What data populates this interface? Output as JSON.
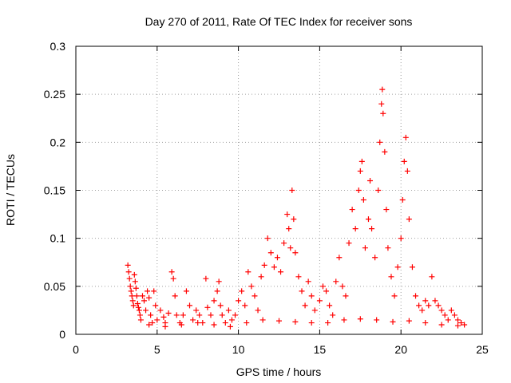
{
  "chart_data": {
    "type": "scatter",
    "title": "Day 270 of 2011, Rate Of TEC Index for receiver sons",
    "xlabel": "GPS time / hours",
    "ylabel": "ROTI / TECUs",
    "xlim": [
      0,
      25
    ],
    "ylim": [
      0,
      0.3
    ],
    "xticks": [
      0,
      5,
      10,
      15,
      20,
      25
    ],
    "xtick_labels": [
      "0",
      "5",
      "10",
      "15",
      "20",
      "25"
    ],
    "yticks": [
      0,
      0.05,
      0.1,
      0.15,
      0.2,
      0.25,
      0.3
    ],
    "ytick_labels": [
      "0",
      "0.05",
      "0.1",
      "0.15",
      "0.2",
      "0.25",
      "0.3"
    ],
    "grid": true,
    "marker": "+",
    "color": "#ff0000",
    "series": [
      {
        "points": [
          [
            3.2,
            0.072
          ],
          [
            3.25,
            0.065
          ],
          [
            3.3,
            0.058
          ],
          [
            3.35,
            0.05
          ],
          [
            3.4,
            0.045
          ],
          [
            3.45,
            0.04
          ],
          [
            3.5,
            0.035
          ],
          [
            3.55,
            0.03
          ],
          [
            3.6,
            0.062
          ],
          [
            3.65,
            0.055
          ],
          [
            3.7,
            0.048
          ],
          [
            3.75,
            0.04
          ],
          [
            3.8,
            0.032
          ],
          [
            3.85,
            0.028
          ],
          [
            3.9,
            0.025
          ],
          [
            3.95,
            0.02
          ],
          [
            4.0,
            0.015
          ],
          [
            4.1,
            0.04
          ],
          [
            4.2,
            0.035
          ],
          [
            4.3,
            0.025
          ],
          [
            4.4,
            0.045
          ],
          [
            4.5,
            0.038
          ],
          [
            4.6,
            0.02
          ],
          [
            4.7,
            0.012
          ],
          [
            4.8,
            0.045
          ],
          [
            4.9,
            0.03
          ],
          [
            5.0,
            0.015
          ],
          [
            5.2,
            0.025
          ],
          [
            5.4,
            0.018
          ],
          [
            5.5,
            0.012
          ],
          [
            5.7,
            0.022
          ],
          [
            5.9,
            0.065
          ],
          [
            6.0,
            0.058
          ],
          [
            6.1,
            0.04
          ],
          [
            6.2,
            0.02
          ],
          [
            6.4,
            0.012
          ],
          [
            6.6,
            0.02
          ],
          [
            6.8,
            0.045
          ],
          [
            7.0,
            0.03
          ],
          [
            7.2,
            0.015
          ],
          [
            7.4,
            0.025
          ],
          [
            7.6,
            0.02
          ],
          [
            7.8,
            0.012
          ],
          [
            8.0,
            0.058
          ],
          [
            8.1,
            0.028
          ],
          [
            8.3,
            0.02
          ],
          [
            8.5,
            0.035
          ],
          [
            8.7,
            0.045
          ],
          [
            8.8,
            0.055
          ],
          [
            8.9,
            0.03
          ],
          [
            9.0,
            0.02
          ],
          [
            9.2,
            0.012
          ],
          [
            9.4,
            0.025
          ],
          [
            9.6,
            0.015
          ],
          [
            9.8,
            0.02
          ],
          [
            10.0,
            0.035
          ],
          [
            10.2,
            0.045
          ],
          [
            10.4,
            0.03
          ],
          [
            10.6,
            0.065
          ],
          [
            10.8,
            0.05
          ],
          [
            11.0,
            0.04
          ],
          [
            11.2,
            0.025
          ],
          [
            11.4,
            0.06
          ],
          [
            11.6,
            0.072
          ],
          [
            11.8,
            0.1
          ],
          [
            12.0,
            0.085
          ],
          [
            12.2,
            0.07
          ],
          [
            12.4,
            0.08
          ],
          [
            12.6,
            0.065
          ],
          [
            12.8,
            0.095
          ],
          [
            13.0,
            0.125
          ],
          [
            13.1,
            0.11
          ],
          [
            13.2,
            0.09
          ],
          [
            13.3,
            0.15
          ],
          [
            13.4,
            0.12
          ],
          [
            13.5,
            0.085
          ],
          [
            13.7,
            0.06
          ],
          [
            13.9,
            0.045
          ],
          [
            14.1,
            0.03
          ],
          [
            14.3,
            0.055
          ],
          [
            14.5,
            0.04
          ],
          [
            14.7,
            0.025
          ],
          [
            15.0,
            0.035
          ],
          [
            15.2,
            0.05
          ],
          [
            15.4,
            0.045
          ],
          [
            15.6,
            0.03
          ],
          [
            15.8,
            0.02
          ],
          [
            16.0,
            0.055
          ],
          [
            16.2,
            0.08
          ],
          [
            16.4,
            0.05
          ],
          [
            16.6,
            0.04
          ],
          [
            16.8,
            0.095
          ],
          [
            17.0,
            0.13
          ],
          [
            17.2,
            0.11
          ],
          [
            17.4,
            0.15
          ],
          [
            17.5,
            0.17
          ],
          [
            17.6,
            0.18
          ],
          [
            17.7,
            0.14
          ],
          [
            17.8,
            0.09
          ],
          [
            18.0,
            0.12
          ],
          [
            18.1,
            0.16
          ],
          [
            18.2,
            0.11
          ],
          [
            18.4,
            0.08
          ],
          [
            18.6,
            0.15
          ],
          [
            18.7,
            0.2
          ],
          [
            18.8,
            0.24
          ],
          [
            18.85,
            0.255
          ],
          [
            18.9,
            0.23
          ],
          [
            19.0,
            0.19
          ],
          [
            19.1,
            0.13
          ],
          [
            19.2,
            0.09
          ],
          [
            19.4,
            0.06
          ],
          [
            19.6,
            0.04
          ],
          [
            19.8,
            0.07
          ],
          [
            20.0,
            0.1
          ],
          [
            20.1,
            0.14
          ],
          [
            20.2,
            0.18
          ],
          [
            20.3,
            0.205
          ],
          [
            20.4,
            0.17
          ],
          [
            20.5,
            0.12
          ],
          [
            20.7,
            0.07
          ],
          [
            20.9,
            0.04
          ],
          [
            21.1,
            0.03
          ],
          [
            21.3,
            0.025
          ],
          [
            21.5,
            0.035
          ],
          [
            21.7,
            0.03
          ],
          [
            21.9,
            0.06
          ],
          [
            22.1,
            0.035
          ],
          [
            22.3,
            0.03
          ],
          [
            22.5,
            0.025
          ],
          [
            22.7,
            0.02
          ],
          [
            22.9,
            0.015
          ],
          [
            23.1,
            0.025
          ],
          [
            23.3,
            0.02
          ],
          [
            23.5,
            0.015
          ],
          [
            23.7,
            0.012
          ],
          [
            23.9,
            0.01
          ],
          [
            4.5,
            0.01
          ],
          [
            5.5,
            0.008
          ],
          [
            6.5,
            0.01
          ],
          [
            7.5,
            0.012
          ],
          [
            8.5,
            0.01
          ],
          [
            9.5,
            0.008
          ],
          [
            10.5,
            0.012
          ],
          [
            11.5,
            0.015
          ],
          [
            12.5,
            0.014
          ],
          [
            13.5,
            0.013
          ],
          [
            14.5,
            0.012
          ],
          [
            15.5,
            0.012
          ],
          [
            16.5,
            0.015
          ],
          [
            17.5,
            0.016
          ],
          [
            18.5,
            0.015
          ],
          [
            19.5,
            0.013
          ],
          [
            20.5,
            0.014
          ],
          [
            21.5,
            0.012
          ],
          [
            22.5,
            0.01
          ],
          [
            23.5,
            0.009
          ]
        ]
      }
    ]
  }
}
